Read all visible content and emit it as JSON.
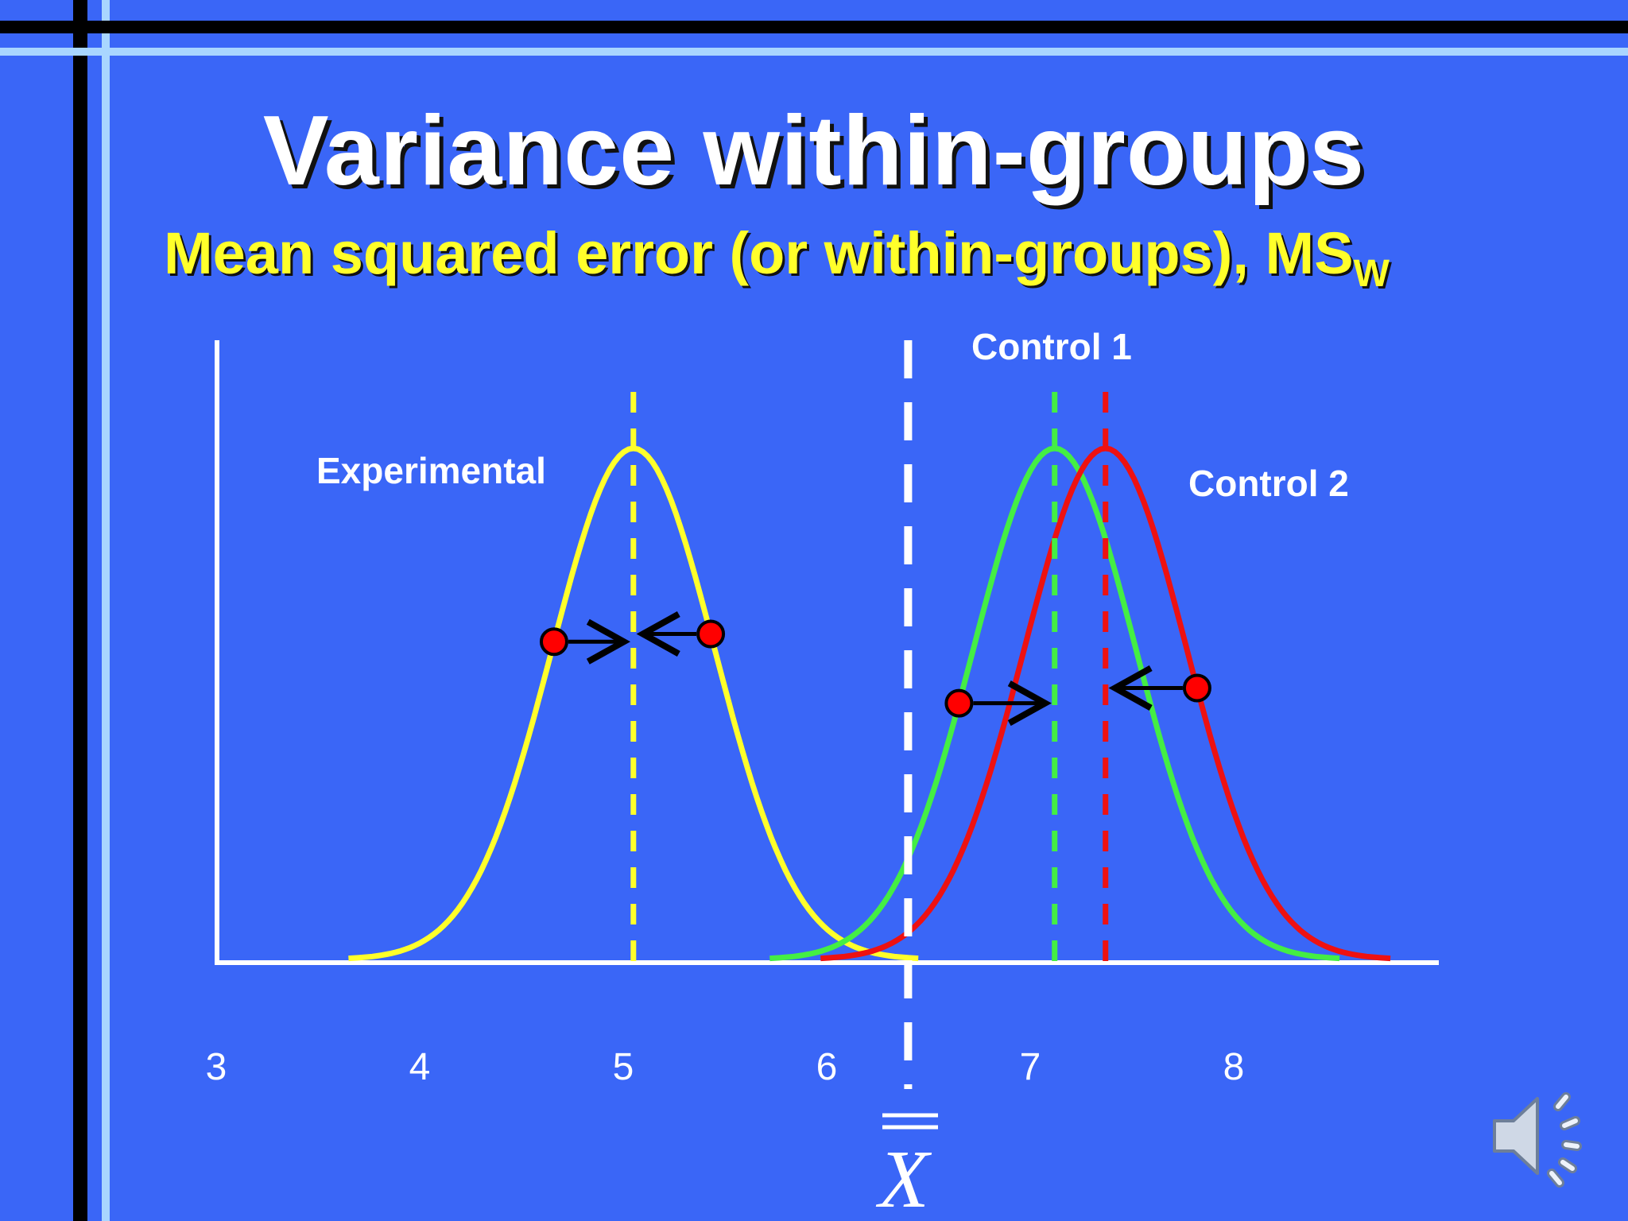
{
  "slide": {
    "title": "Variance within-groups",
    "subtitle_main": "Mean squared error (or within-groups), MS",
    "subtitle_sub": "W"
  },
  "colors": {
    "background": "#3a66f7",
    "experimental": "#ffff2a",
    "control1": "#44ee44",
    "control2": "#ee1111",
    "grand_mean": "#ffffff",
    "points": "#ff0000"
  },
  "axis": {
    "ticks": [
      "3",
      "4",
      "5",
      "6",
      "7",
      "8"
    ],
    "grand_mean_symbol": "X"
  },
  "groups": [
    {
      "name": "Experimental",
      "mean": 5.05,
      "sd": 0.4,
      "color_key": "experimental"
    },
    {
      "name": "Control 1",
      "mean": 7.12,
      "sd": 0.4,
      "color_key": "control1"
    },
    {
      "name": "Control 2",
      "mean": 7.37,
      "sd": 0.4,
      "color_key": "control2"
    }
  ],
  "grand_mean": 6.4,
  "data_points": [
    {
      "group": "Experimental",
      "x": 4.66,
      "direction": "right"
    },
    {
      "group": "Experimental",
      "x": 5.43,
      "direction": "left"
    },
    {
      "group": "Control 1",
      "x": 6.65,
      "direction": "right"
    },
    {
      "group": "Control 2",
      "x": 7.82,
      "direction": "left"
    }
  ],
  "icons": {
    "audio": "speaker-icon"
  }
}
